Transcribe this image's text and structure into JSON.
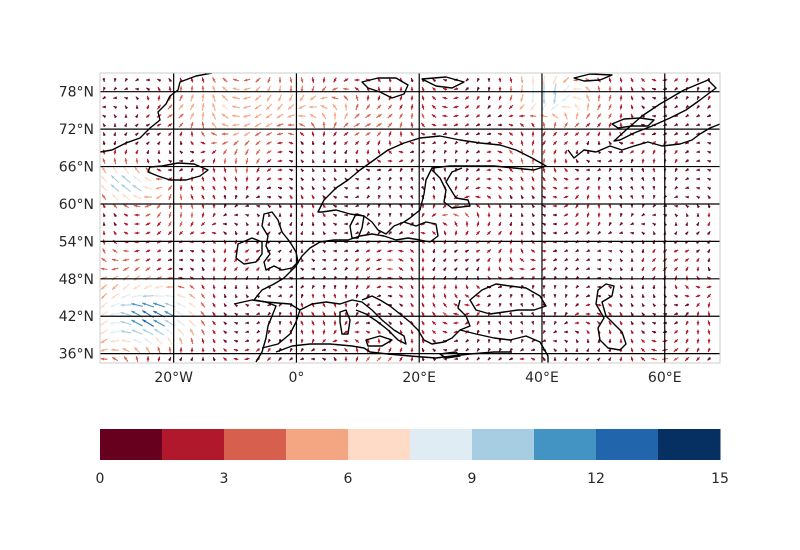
{
  "map": {
    "extent": {
      "lon": [
        -32,
        69
      ],
      "lat": [
        34.5,
        81
      ]
    },
    "gridlines": {
      "lons": [
        -20,
        0,
        20,
        40,
        60
      ],
      "lats": [
        36,
        42,
        48,
        54,
        60,
        66,
        72,
        78
      ]
    },
    "lon_tick_labels": [
      {
        "lon": -20,
        "label": "20°W"
      },
      {
        "lon": 0,
        "label": "0°"
      },
      {
        "lon": 20,
        "label": "20°E"
      },
      {
        "lon": 40,
        "label": "40°E"
      },
      {
        "lon": 60,
        "label": "60°E"
      }
    ],
    "lat_tick_labels": [
      {
        "lat": 36,
        "label": "36°N"
      },
      {
        "lat": 42,
        "label": "42°N"
      },
      {
        "lat": 48,
        "label": "48°N"
      },
      {
        "lat": 54,
        "label": "54°N"
      },
      {
        "lat": 60,
        "label": "60°N"
      },
      {
        "lat": 66,
        "label": "66°N"
      },
      {
        "lat": 72,
        "label": "72°N"
      },
      {
        "lat": 78,
        "label": "78°N"
      }
    ],
    "field": "wind vectors colored by speed",
    "coastline_color": "#000000"
  },
  "colorbar": {
    "cmap": "RdBu",
    "min": 0,
    "max": 15,
    "tick_labels": [
      "0",
      "3",
      "6",
      "9",
      "12",
      "15"
    ],
    "colors": [
      "#67001f",
      "#b2182b",
      "#d6604d",
      "#f4a582",
      "#fddbc7",
      "#e0ecf4",
      "#a6cde2",
      "#4393c3",
      "#2166ac",
      "#053061"
    ]
  }
}
